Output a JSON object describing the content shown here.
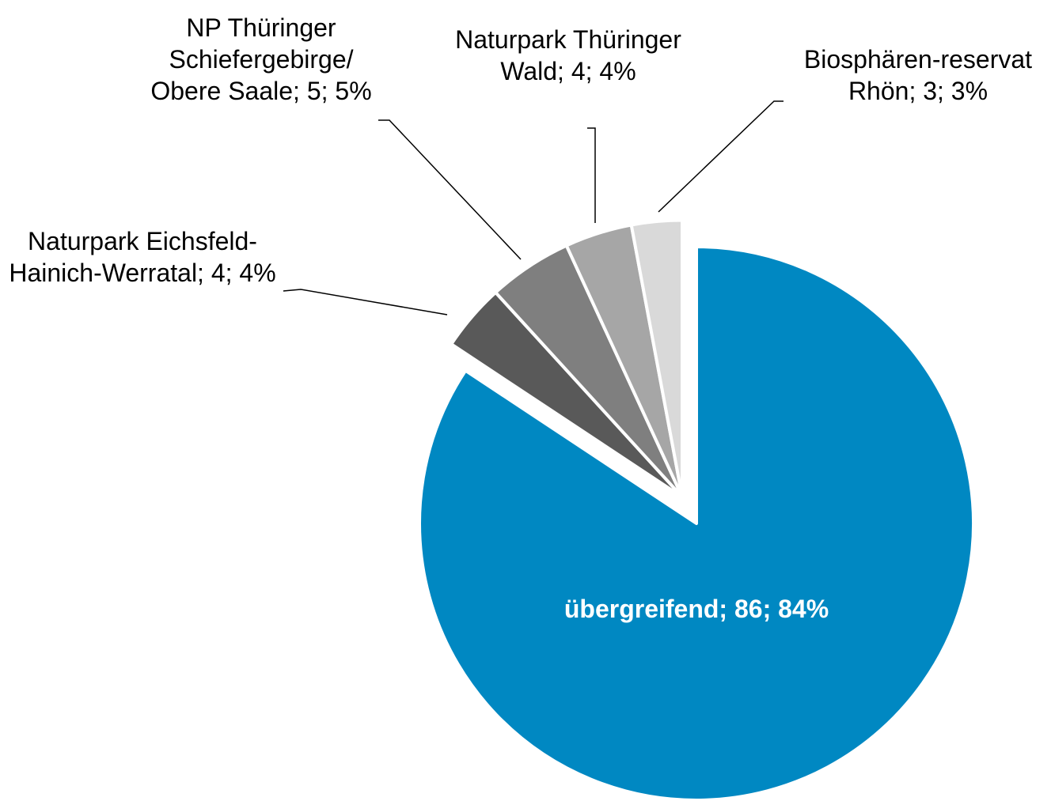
{
  "chart_data": {
    "type": "pie",
    "values": [
      86,
      4,
      5,
      4,
      3
    ],
    "value_labels": [
      "übergreifend; 86; 84%",
      "Naturpark Eichsfeld-Hainich-Werratal; 4; 4%",
      "NP Thüringer Schiefergebirge/ Obere Saale; 5; 5%",
      "Naturpark Thüringer Wald; 4; 4%",
      "Biosphären-reservat Rhön; 3; 3%"
    ],
    "colors": [
      "#0088c2",
      "#595959",
      "#7f7f7f",
      "#a6a6a6",
      "#d9d9d9"
    ],
    "exploded": [
      false,
      true,
      true,
      true,
      true
    ]
  }
}
